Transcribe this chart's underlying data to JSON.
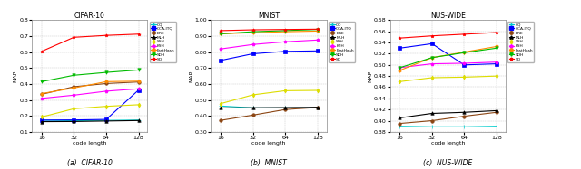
{
  "x": [
    16,
    32,
    64,
    128
  ],
  "cifar10": {
    "title": "CIFAR-10",
    "xlabel": "code length",
    "ylabel": "MAP",
    "ylim": [
      0.1,
      0.8
    ],
    "yticks": [
      0.1,
      0.2,
      0.3,
      0.4,
      0.5,
      0.6,
      0.7,
      0.8
    ],
    "series": {
      "CQ": {
        "color": "#00CCCC",
        "marker": "+",
        "data": [
          0.173,
          0.17,
          0.172,
          0.174
        ]
      },
      "CCA-ITQ": {
        "color": "#0000FF",
        "marker": "s",
        "data": [
          0.174,
          0.175,
          0.178,
          0.362
        ]
      },
      "BRE": {
        "color": "#8B4513",
        "marker": "o",
        "data": [
          0.335,
          0.383,
          0.403,
          0.413
        ]
      },
      "MLH": {
        "color": "#000000",
        "marker": "^",
        "data": [
          0.164,
          0.165,
          0.168,
          0.171
        ]
      },
      "SSH": {
        "color": "#DDDD00",
        "marker": "d",
        "data": [
          0.193,
          0.245,
          0.26,
          0.27
        ]
      },
      "KSH": {
        "color": "#FF00FF",
        "marker": "p",
        "data": [
          0.31,
          0.33,
          0.355,
          0.37
        ]
      },
      "FastHash": {
        "color": "#FF8C00",
        "marker": "h",
        "data": [
          0.34,
          0.375,
          0.415,
          0.418
        ]
      },
      "SDH": {
        "color": "#00BB00",
        "marker": "v",
        "data": [
          0.415,
          0.455,
          0.473,
          0.488
        ]
      },
      "SQ": {
        "color": "#FF0000",
        "marker": "*",
        "data": [
          0.605,
          0.693,
          0.705,
          0.713
        ]
      }
    }
  },
  "mnist": {
    "title": "MNIST",
    "xlabel": "code length",
    "ylabel": "MAP",
    "ylim": [
      0.3,
      1.0
    ],
    "yticks": [
      0.3,
      0.4,
      0.5,
      0.6,
      0.7,
      0.8,
      0.9,
      1.0
    ],
    "series": {
      "CQ": {
        "color": "#00CCCC",
        "marker": "+",
        "data": [
          0.462,
          0.45,
          0.45,
          0.45
        ]
      },
      "CCA-ITQ": {
        "color": "#0000FF",
        "marker": "s",
        "data": [
          0.748,
          0.79,
          0.805,
          0.808
        ]
      },
      "BRE": {
        "color": "#8B4513",
        "marker": "o",
        "data": [
          0.372,
          0.405,
          0.44,
          0.453
        ]
      },
      "MLH": {
        "color": "#000000",
        "marker": "^",
        "data": [
          0.45,
          0.451,
          0.452,
          0.454
        ]
      },
      "SSH": {
        "color": "#DDDD00",
        "marker": "d",
        "data": [
          0.477,
          0.532,
          0.558,
          0.56
        ]
      },
      "KSH": {
        "color": "#FF00FF",
        "marker": "p",
        "data": [
          0.82,
          0.848,
          0.865,
          0.876
        ]
      },
      "FastHash": {
        "color": "#FF8C00",
        "marker": "h",
        "data": [
          0.915,
          0.922,
          0.928,
          0.932
        ]
      },
      "SDH": {
        "color": "#00BB00",
        "marker": "v",
        "data": [
          0.915,
          0.928,
          0.935,
          0.942
        ]
      },
      "SQ": {
        "color": "#FF0000",
        "marker": "*",
        "data": [
          0.935,
          0.94,
          0.942,
          0.944
        ]
      }
    }
  },
  "nuswide": {
    "title": "NUS-WIDE",
    "xlabel": "code length",
    "ylabel": "MAP",
    "ylim": [
      0.38,
      0.58
    ],
    "yticks": [
      0.38,
      0.4,
      0.42,
      0.44,
      0.46,
      0.48,
      0.5,
      0.52,
      0.54,
      0.56,
      0.58
    ],
    "series": {
      "CQ": {
        "color": "#00CCCC",
        "marker": "+",
        "data": [
          0.39,
          0.389,
          0.389,
          0.39
        ]
      },
      "CCA-ITQ": {
        "color": "#0000FF",
        "marker": "s",
        "data": [
          0.53,
          0.538,
          0.5,
          0.502
        ]
      },
      "BRE": {
        "color": "#8B4513",
        "marker": "o",
        "data": [
          0.395,
          0.4,
          0.408,
          0.415
        ]
      },
      "MLH": {
        "color": "#000000",
        "marker": "^",
        "data": [
          0.405,
          0.413,
          0.415,
          0.418
        ]
      },
      "SSH": {
        "color": "#DDDD00",
        "marker": "d",
        "data": [
          0.47,
          0.477,
          0.478,
          0.48
        ]
      },
      "KSH": {
        "color": "#FF00FF",
        "marker": "p",
        "data": [
          0.495,
          0.502,
          0.503,
          0.505
        ]
      },
      "FastHash": {
        "color": "#FF8C00",
        "marker": "h",
        "data": [
          0.49,
          0.513,
          0.523,
          0.533
        ]
      },
      "SDH": {
        "color": "#00BB00",
        "marker": "v",
        "data": [
          0.495,
          0.513,
          0.522,
          0.53
        ]
      },
      "SQ": {
        "color": "#FF0000",
        "marker": "*",
        "data": [
          0.548,
          0.552,
          0.555,
          0.558
        ]
      }
    }
  },
  "legend_order": [
    "CQ",
    "CCA-ITQ",
    "BRE",
    "MLH",
    "SSH",
    "KSH",
    "FastHash",
    "SDH",
    "SQ"
  ],
  "caption": [
    "(a)  CIFAR-10",
    "(b)  MNIST",
    "(c)  NUS-WIDE"
  ],
  "bg_color": "#FFFFFF"
}
